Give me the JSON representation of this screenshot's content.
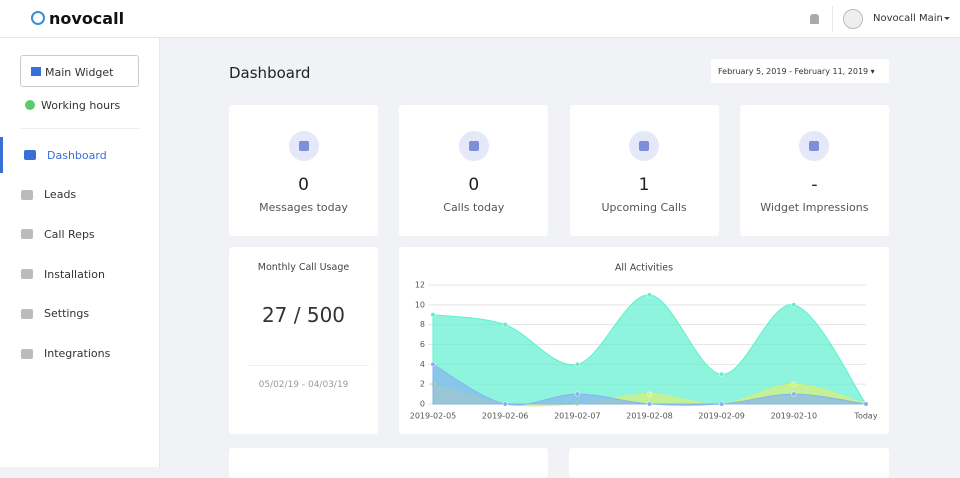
{
  "header": {
    "brand": "novocall",
    "user": "Novocall Main"
  },
  "sidebar": {
    "widget_button": "Main Widget",
    "status": "Working hours",
    "nav": [
      "Dashboard",
      "Leads",
      "Call Reps",
      "Installation",
      "Settings",
      "Integrations"
    ]
  },
  "page": {
    "title": "Dashboard",
    "date_range": "February 5, 2019 - February 11, 2019"
  },
  "stats": [
    {
      "value": 0,
      "label": "Messages today"
    },
    {
      "value": 0,
      "label": "Calls today"
    },
    {
      "value": 1,
      "label": "Upcoming Calls"
    },
    {
      "value": "-",
      "label": "Widget Impressions"
    }
  ],
  "usage": {
    "title": "Monthly Call Usage",
    "value": "27 / 500",
    "period": "05/02/19 - 04/03/19"
  },
  "chart": {
    "type": "area",
    "title": "All Activities",
    "categories": [
      "2019-02-05",
      "2019-02-06",
      "2019-02-07",
      "2019-02-08",
      "2019-02-09",
      "2019-02-10",
      "Today"
    ],
    "series": [
      {
        "color": "#5ef0cf",
        "values": [
          9,
          8,
          4,
          11,
          3,
          10,
          0
        ]
      },
      {
        "color": "#d8f07a",
        "values": [
          2,
          0,
          0,
          1,
          0,
          2,
          0
        ]
      },
      {
        "color": "#86b4ef",
        "values": [
          4,
          0,
          1,
          0,
          0,
          1,
          0
        ]
      }
    ],
    "ylim": [
      0,
      12
    ],
    "yticks": [
      0,
      2,
      4,
      6,
      8,
      10,
      12
    ],
    "grid": true
  }
}
